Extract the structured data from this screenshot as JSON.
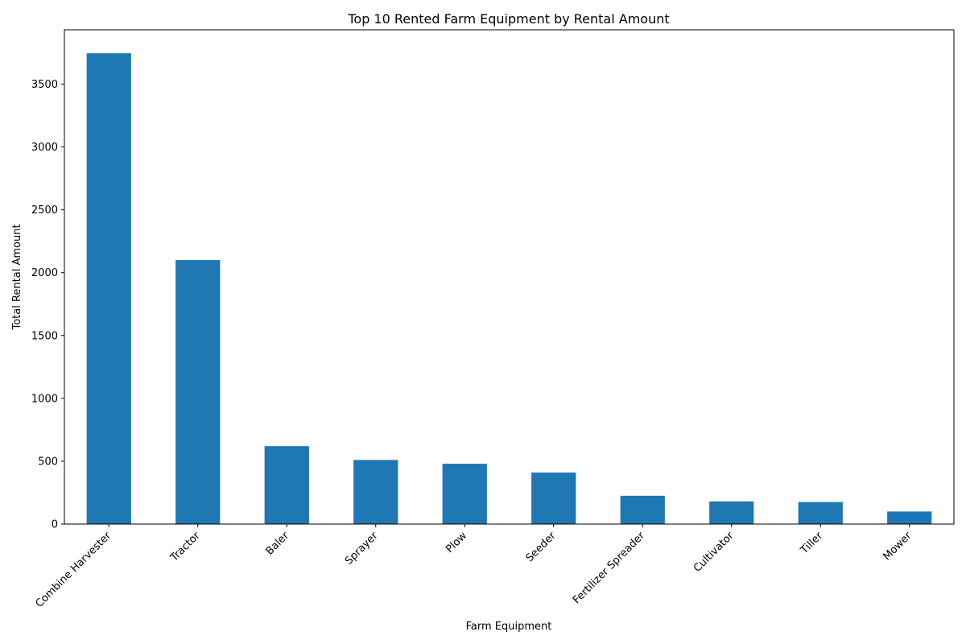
{
  "chart_data": {
    "type": "bar",
    "title": "Top 10 Rented Farm Equipment by Rental Amount",
    "xlabel": "Farm Equipment",
    "ylabel": "Total Rental Amount",
    "categories": [
      "Combine Harvester",
      "Tractor",
      "Baler",
      "Sprayer",
      "Plow",
      "Seeder",
      "Fertilizer Spreader",
      "Cultivator",
      "Tiller",
      "Mower"
    ],
    "values": [
      3745,
      2100,
      620,
      510,
      480,
      410,
      225,
      180,
      175,
      100
    ],
    "ylim": [
      0,
      3932
    ],
    "yticks": [
      0,
      500,
      1000,
      1500,
      2000,
      2500,
      3000,
      3500
    ],
    "grid": false,
    "bar_color": "#1f77b4"
  }
}
